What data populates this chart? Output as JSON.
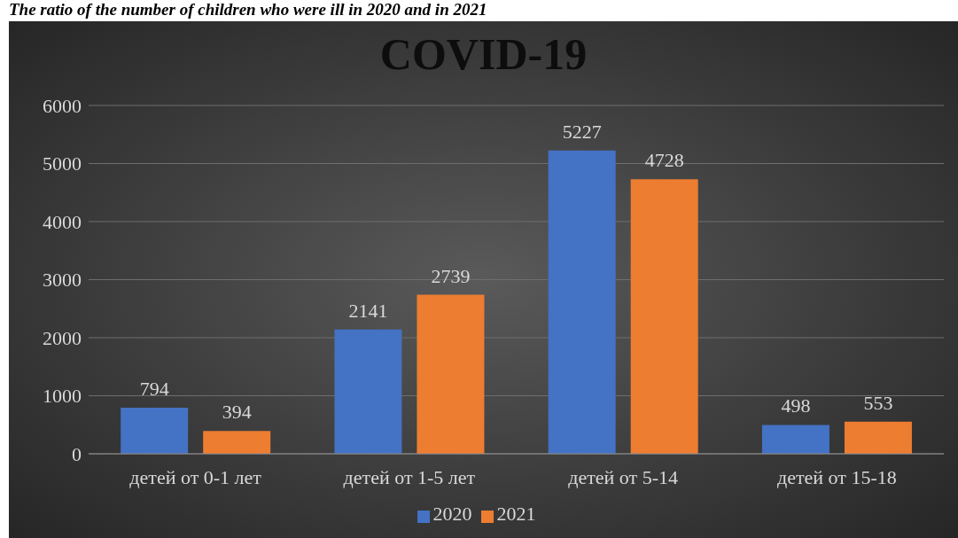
{
  "chart_data": {
    "type": "bar",
    "title": "COVID-19",
    "annotations": [
      "The ratio of the number of children who were ill in 2020 and in 2021"
    ],
    "categories": [
      "детей от 0-1 лет",
      "детей от 1-5 лет",
      "детей от 5-14",
      "детей от 15-18"
    ],
    "series": [
      {
        "name": "2020",
        "color": "#4472c4",
        "values": [
          794,
          2141,
          5227,
          498
        ]
      },
      {
        "name": "2021",
        "color": "#ed7d31",
        "values": [
          394,
          2739,
          4728,
          553
        ]
      }
    ],
    "ylim": [
      0,
      6000
    ],
    "yticks": [
      0,
      1000,
      2000,
      3000,
      4000,
      5000,
      6000
    ],
    "grid": "y",
    "legend": "bottom",
    "data_labels": true
  }
}
